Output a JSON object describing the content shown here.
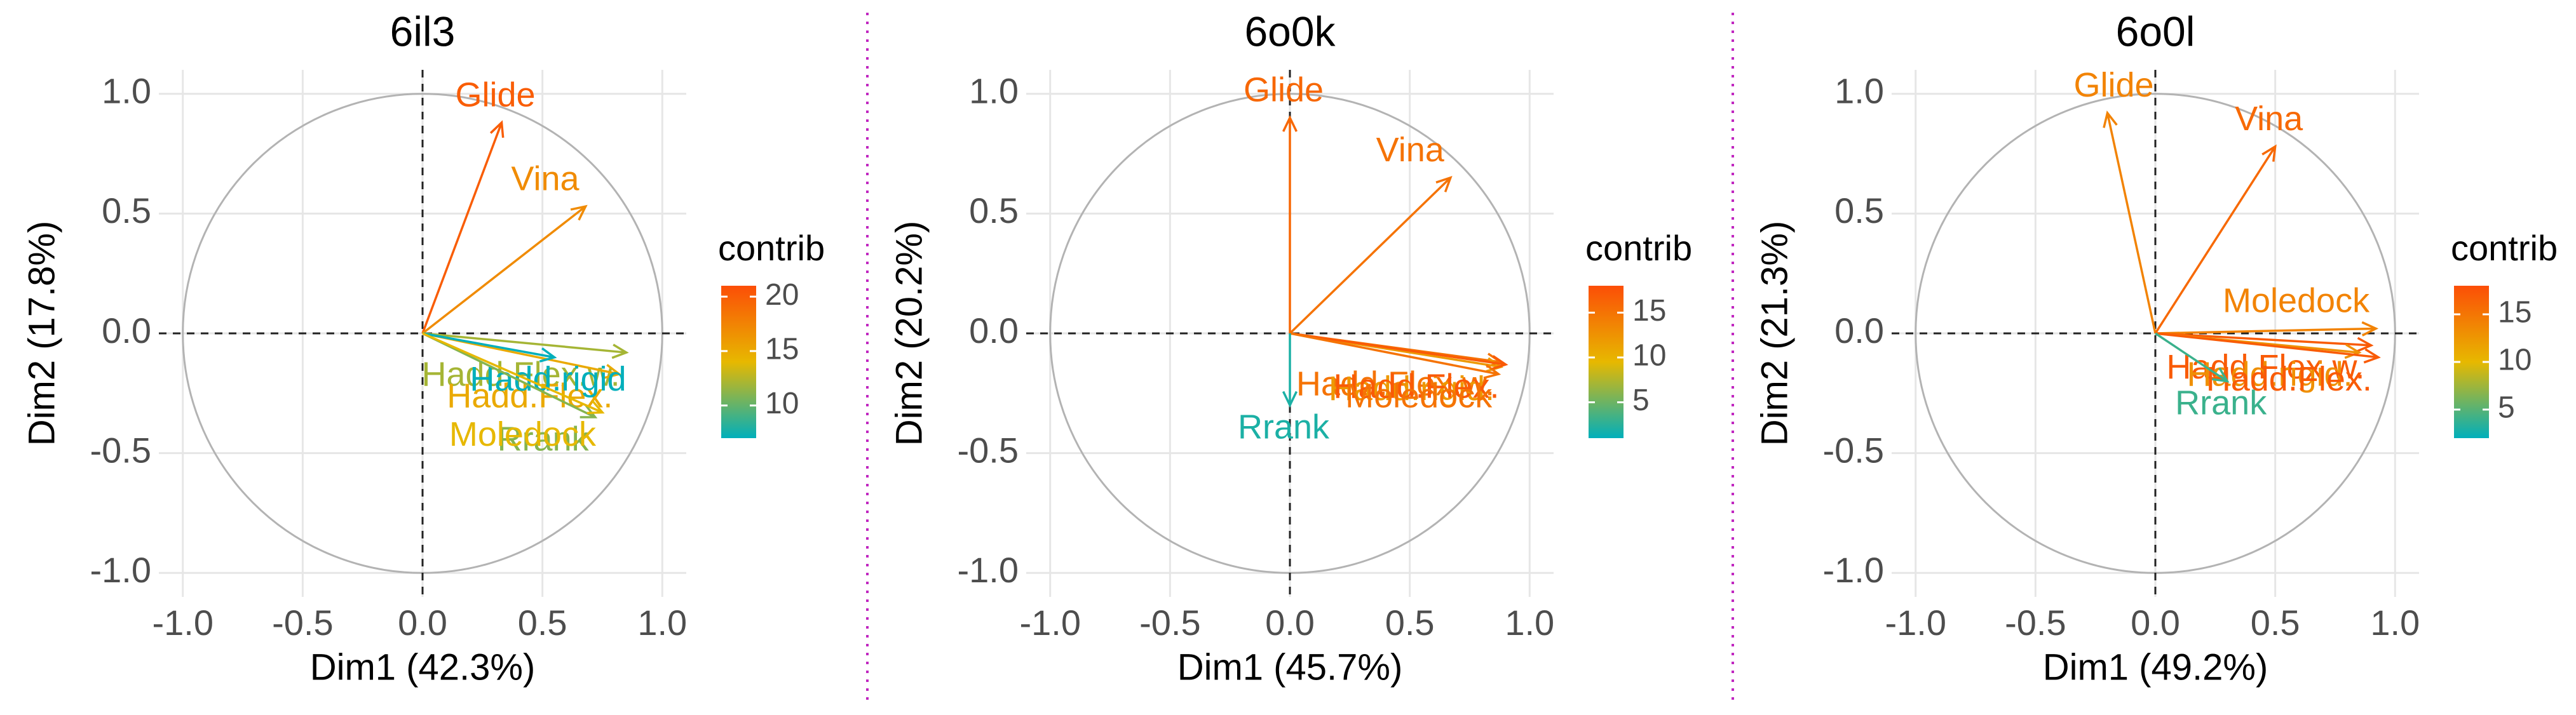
{
  "chart_data": [
    {
      "type": "vector",
      "title": "6il3",
      "x_label": "Dim1 (42.3%)",
      "y_label": "Dim2 (17.8%)",
      "categories": [
        "Glide",
        "Vina",
        "Hadd.Flex.w.",
        "Hadd.Flex.",
        "Hadd.rigid",
        "Rrank",
        "Moledock"
      ],
      "x": [
        0.33,
        0.68,
        0.85,
        0.82,
        0.55,
        0.72,
        0.75
      ],
      "values": [
        0.88,
        0.53,
        -0.08,
        -0.17,
        -0.1,
        -0.35,
        -0.33
      ],
      "contrib": [
        20,
        17,
        12,
        15,
        7,
        11,
        14
      ],
      "legend_title": "contrib",
      "contrib_lim": [
        7,
        21
      ],
      "contrib_ticks": [
        10,
        15,
        20
      ],
      "color_scale": [
        "#00AFBB",
        "#E7B800",
        "#FC4E07"
      ],
      "xlim": [
        -1.1,
        1.1
      ],
      "ylim": [
        -1.1,
        1.1
      ],
      "xticks": [
        {
          "value": -1,
          "label": "-1.0"
        },
        -0.5,
        {
          "value": 0,
          "label": "0.0"
        },
        0.5,
        {
          "value": 1,
          "label": "1.0"
        }
      ],
      "yticks": [
        {
          "value": -1,
          "label": "-1.0"
        },
        -0.5,
        {
          "value": 0,
          "label": "0.0"
        },
        0.5,
        {
          "value": 1,
          "label": "1.0"
        }
      ],
      "grid": true
    },
    {
      "type": "vector",
      "title": "6o0k",
      "x_label": "Dim1 (45.7%)",
      "y_label": "Dim2 (20.2%)",
      "categories": [
        "Glide",
        "Vina",
        "Hadd.Flex.w.",
        "Hadd.rigid.",
        "Hadd.Flex.",
        "Moledock",
        "Rrank"
      ],
      "x": [
        0.0,
        0.67,
        0.88,
        0.88,
        0.9,
        0.87,
        0.0
      ],
      "values": [
        0.9,
        0.65,
        -0.12,
        -0.14,
        -0.13,
        -0.17,
        -0.3
      ],
      "contrib": [
        16,
        15,
        15,
        12,
        17,
        15,
        2
      ],
      "legend_title": "contrib",
      "contrib_lim": [
        1,
        18
      ],
      "contrib_ticks": [
        5,
        10,
        15
      ],
      "color_scale": [
        "#00AFBB",
        "#E7B800",
        "#FC4E07"
      ],
      "xlim": [
        -1.1,
        1.1
      ],
      "ylim": [
        -1.1,
        1.1
      ],
      "xticks": [
        {
          "value": -1,
          "label": "-1.0"
        },
        -0.5,
        {
          "value": 0,
          "label": "0.0"
        },
        0.5,
        {
          "value": 1,
          "label": "1.0"
        }
      ],
      "yticks": [
        {
          "value": -1,
          "label": "-1.0"
        },
        -0.5,
        {
          "value": 0,
          "label": "0.0"
        },
        0.5,
        {
          "value": 1,
          "label": "1.0"
        }
      ],
      "grid": true
    },
    {
      "type": "vector",
      "title": "6o0l",
      "x_label": "Dim1 (49.2%)",
      "y_label": "Dim2 (21.3%)",
      "categories": [
        "Glide",
        "Vina",
        "Moledock",
        "Hadd.Flex.w.",
        "Hadd.rigid.",
        "Hadd.Flex.",
        "Rrank"
      ],
      "x": [
        -0.2,
        0.5,
        0.92,
        0.9,
        0.85,
        0.93,
        0.3
      ],
      "values": [
        0.92,
        0.78,
        0.02,
        -0.05,
        -0.08,
        -0.1,
        -0.2
      ],
      "contrib": [
        14,
        16,
        14,
        17,
        13,
        17,
        4
      ],
      "legend_title": "contrib",
      "contrib_lim": [
        2,
        18
      ],
      "contrib_ticks": [
        5,
        10,
        15
      ],
      "color_scale": [
        "#00AFBB",
        "#E7B800",
        "#FC4E07"
      ],
      "xlim": [
        -1.1,
        1.1
      ],
      "ylim": [
        -1.1,
        1.1
      ],
      "xticks": [
        {
          "value": -1,
          "label": "-1.0"
        },
        -0.5,
        {
          "value": 0,
          "label": "0.0"
        },
        0.5,
        {
          "value": 1,
          "label": "1.0"
        }
      ],
      "yticks": [
        {
          "value": -1,
          "label": "-1.0"
        },
        -0.5,
        {
          "value": 0,
          "label": "0.0"
        },
        0.5,
        {
          "value": 1,
          "label": "1.0"
        }
      ],
      "grid": true
    }
  ]
}
